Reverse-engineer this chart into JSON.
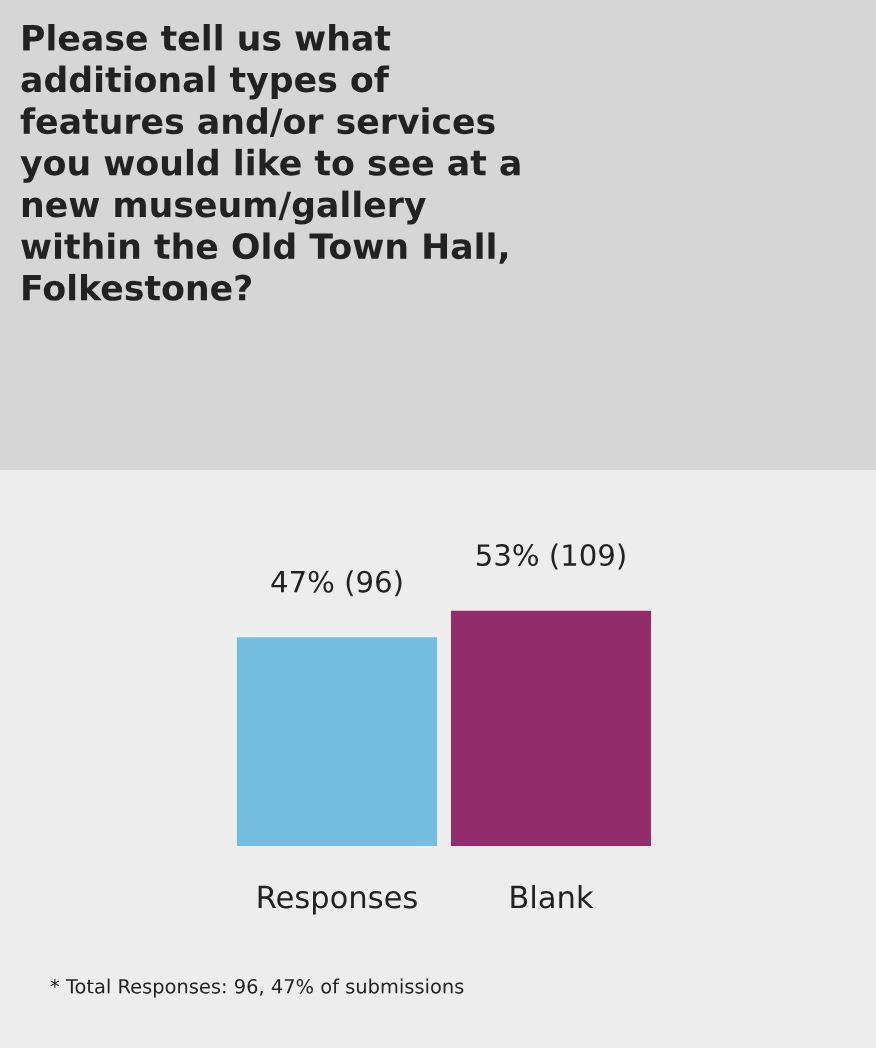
{
  "chart_data": {
    "type": "bar",
    "title": "Please tell us what\nadditional types of\nfeatures and/or services\nyou would like to see at a\nnew museum/gallery\nwithin the Old Town Hall,\nFolkestone?",
    "categories": [
      "Responses",
      "Blank"
    ],
    "values": [
      47,
      53
    ],
    "colors": [
      "#74bfe0",
      "#922c6b"
    ],
    "value_labels": [
      "47% (96)",
      "53% (109)"
    ],
    "annotations": [
      "* Total Responses: 96, 47% of submissions"
    ]
  }
}
